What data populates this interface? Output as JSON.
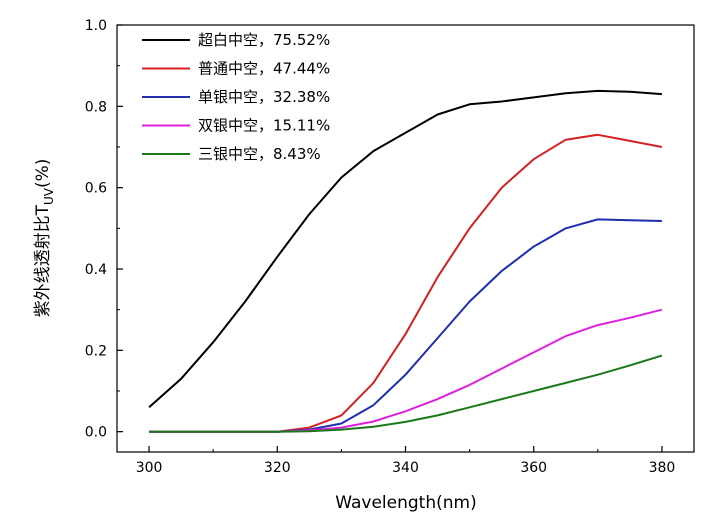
{
  "chart_data": {
    "type": "line",
    "xlabel": "Wavelength(nm)",
    "ylabel": "紫外线透射比T",
    "ylabel_subscript": "UV",
    "ylabel_unit": "(%)",
    "xlim": [
      295,
      385
    ],
    "ylim": [
      -0.05,
      1.0
    ],
    "x_ticks": [
      "300",
      "320",
      "340",
      "360",
      "380"
    ],
    "y_ticks": [
      "0.0",
      "0.2",
      "0.4",
      "0.6",
      "0.8",
      "1.0"
    ],
    "grid": false,
    "legend_position": "top-left",
    "x": [
      300,
      305,
      310,
      315,
      320,
      325,
      330,
      335,
      340,
      345,
      350,
      355,
      360,
      365,
      370,
      375,
      380
    ],
    "series": [
      {
        "name": "超白中空，75.52%",
        "color": "#000000",
        "values": [
          0.06,
          0.13,
          0.22,
          0.32,
          0.43,
          0.535,
          0.625,
          0.69,
          0.735,
          0.78,
          0.805,
          0.812,
          0.822,
          0.832,
          0.838,
          0.836,
          0.83
        ]
      },
      {
        "name": "普通中空，47.44%",
        "color": "#d42020",
        "values": [
          0.0,
          0.0,
          0.0,
          0.0,
          0.0,
          0.01,
          0.04,
          0.12,
          0.24,
          0.38,
          0.5,
          0.6,
          0.67,
          0.718,
          0.73,
          0.715,
          0.7
        ]
      },
      {
        "name": "单银中空，32.38%",
        "color": "#1f2fb0",
        "values": [
          0.0,
          0.0,
          0.0,
          0.0,
          0.0,
          0.005,
          0.02,
          0.065,
          0.14,
          0.23,
          0.32,
          0.395,
          0.455,
          0.5,
          0.522,
          0.52,
          0.518
        ]
      },
      {
        "name": "双银中空，15.11%",
        "color": "#e020e0",
        "values": [
          0.0,
          0.0,
          0.0,
          0.0,
          0.0,
          0.003,
          0.01,
          0.025,
          0.05,
          0.08,
          0.115,
          0.155,
          0.195,
          0.235,
          0.262,
          0.28,
          0.3
        ]
      },
      {
        "name": "三银中空，8.43%",
        "color": "#1a7a1a",
        "values": [
          0.0,
          0.0,
          0.0,
          0.0,
          0.0,
          0.001,
          0.005,
          0.012,
          0.024,
          0.04,
          0.06,
          0.08,
          0.1,
          0.12,
          0.14,
          0.163,
          0.187
        ]
      }
    ]
  }
}
